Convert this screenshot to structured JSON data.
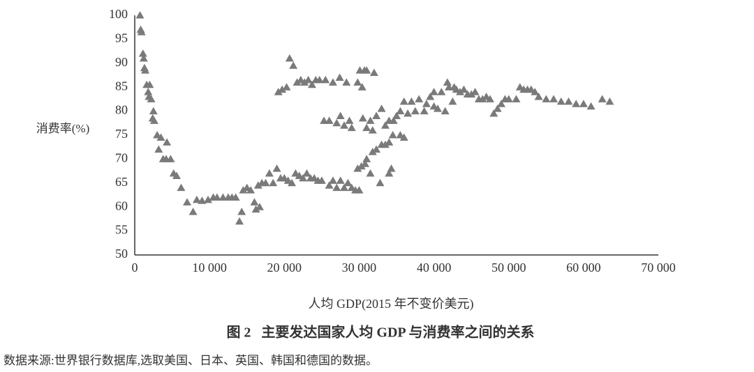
{
  "chart_data": {
    "type": "scatter",
    "ylabel": "消费率(%)",
    "xlabel": "人均 GDP(2015 年不变价美元)",
    "caption": "图 2   主要发达国家人均 GDP 与消费率之间的关系",
    "source": "数据来源:世界银行数据库,选取美国、日本、英国、韩国和德国的数据。",
    "color": "#7a7a7a",
    "xlim": [
      0,
      70000
    ],
    "ylim": [
      50,
      100
    ],
    "xticks": [
      0,
      {
        "value": 10000,
        "label": "10 000"
      },
      {
        "value": 20000,
        "label": "20 000"
      },
      {
        "value": 30000,
        "label": "30 000"
      },
      {
        "value": 40000,
        "label": "40 000"
      },
      {
        "value": 50000,
        "label": "50 000"
      },
      {
        "value": 60000,
        "label": "60 000"
      },
      {
        "value": 70000,
        "label": "70 000"
      }
    ],
    "yticks": [
      50,
      55,
      60,
      65,
      70,
      75,
      80,
      85,
      90,
      95,
      100
    ],
    "x": [
      700,
      800,
      900,
      1100,
      1200,
      1300,
      1400,
      1600,
      1800,
      2000,
      1900,
      2200,
      2500,
      2400,
      2600,
      3000,
      3200,
      3500,
      3800,
      4200,
      4300,
      4800,
      5200,
      5600,
      6200,
      7000,
      7800,
      8300,
      9000,
      9800,
      10500,
      11000,
      11800,
      12500,
      13000,
      13500,
      14000,
      14300,
      14500,
      15000,
      15500,
      16000,
      16200,
      16700,
      16500,
      17000,
      17500,
      18000,
      18500,
      19000,
      19500,
      20000,
      20500,
      21000,
      21500,
      22000,
      22500,
      23000,
      23500,
      24000,
      24500,
      25000,
      26000,
      26500,
      27000,
      27500,
      28000,
      28500,
      29000,
      29500,
      30000,
      29800,
      30300,
      30800,
      31000,
      31500,
      31800,
      32300,
      32800,
      33000,
      33500,
      34000,
      34000,
      34300,
      34500,
      19200,
      19700,
      20300,
      20700,
      21200,
      21700,
      22200,
      22700,
      23200,
      23700,
      24200,
      24700,
      25500,
      26500,
      27400,
      28300,
      29800,
      30100,
      30400,
      30700,
      31000,
      32000,
      25300,
      26000,
      27000,
      27500,
      28000,
      29000,
      28700,
      30500,
      31000,
      31500,
      31800,
      32300,
      33000,
      33500,
      34000,
      34600,
      35000,
      35500,
      35500,
      36000,
      36000,
      36500,
      37000,
      37500,
      38000,
      38700,
      39000,
      39500,
      40000,
      40000,
      40500,
      41000,
      41500,
      41800,
      42000,
      42500,
      42700,
      43000,
      43500,
      44000,
      44500,
      45000,
      45500,
      46000,
      46500,
      47000,
      47500,
      48000,
      48500,
      49000,
      49500,
      50000,
      51000,
      51500,
      52000,
      52500,
      53000,
      53500,
      54000,
      55000,
      56000,
      57000,
      58000,
      59000,
      60000,
      61000,
      62500,
      63500
    ],
    "values": [
      100,
      97,
      96.5,
      92,
      91,
      89,
      88.5,
      85.5,
      84,
      85.5,
      83,
      82.5,
      80,
      78.5,
      78,
      75,
      72,
      74.5,
      70,
      70,
      73.5,
      70,
      67,
      66.5,
      64,
      61,
      59,
      61.5,
      61.3,
      61.5,
      62,
      62,
      62,
      62,
      62,
      62,
      57,
      59,
      63.5,
      64,
      63.5,
      61,
      59.5,
      60,
      64.5,
      65,
      65,
      67,
      65,
      68,
      66,
      66,
      65.5,
      65,
      67,
      66.5,
      66,
      67,
      66,
      66,
      65.5,
      65.5,
      64.5,
      65.5,
      64,
      65.5,
      64,
      65,
      64,
      63.5,
      63.5,
      68,
      68.5,
      69,
      70,
      67,
      71.5,
      72,
      65,
      73,
      73,
      73.5,
      67,
      68,
      75,
      84,
      84.5,
      85,
      91,
      89.5,
      86,
      86.5,
      86,
      86.5,
      85.5,
      86.5,
      86.5,
      86.5,
      86,
      87,
      86,
      86,
      88.5,
      85,
      88.5,
      88.5,
      88,
      78,
      78,
      77.5,
      79,
      77,
      76.5,
      78,
      78.5,
      76.5,
      78,
      76,
      79,
      80.5,
      77,
      78,
      78,
      79,
      80,
      75,
      74.5,
      82,
      79.5,
      82,
      80,
      82.5,
      80,
      81.5,
      83,
      84,
      81,
      80.5,
      84,
      80,
      86,
      85,
      82,
      85,
      84.5,
      84,
      84.5,
      83.5,
      83.5,
      84,
      82.5,
      82.5,
      83,
      82.5,
      79.5,
      80.5,
      81.5,
      82.5,
      82.5,
      82.5,
      85,
      84.5,
      84.5,
      84.5,
      84,
      83,
      82.5,
      82.5,
      82,
      82,
      81.5,
      81.5,
      81,
      82.5,
      82
    ]
  }
}
